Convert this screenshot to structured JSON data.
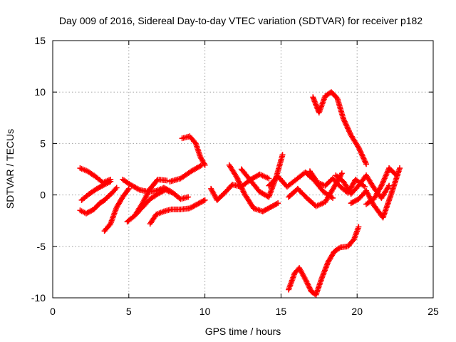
{
  "chart_data": {
    "type": "scatter",
    "title": "Day 009 of 2016, Sidereal Day-to-day VTEC variation (SDTVAR) for receiver p182",
    "xlabel": "GPS time / hours",
    "ylabel": "SDTVAR / TECUs",
    "xlim": [
      0,
      25
    ],
    "ylim": [
      -10,
      15
    ],
    "x_ticks": [
      "0",
      "5",
      "10",
      "15",
      "20",
      "25"
    ],
    "y_ticks": [
      "-10",
      "-5",
      "0",
      "5",
      "10",
      "15"
    ],
    "grid": true,
    "marker": "+",
    "marker_color": "#ff0000",
    "series": [
      {
        "x": [
          1.8,
          2.3,
          2.8,
          3.3,
          3.8
        ],
        "y": [
          2.6,
          2.3,
          1.8,
          1.2,
          1.5
        ]
      },
      {
        "x": [
          1.9,
          2.4,
          2.9,
          3.4,
          3.8
        ],
        "y": [
          -0.5,
          0.1,
          0.6,
          1.0,
          1.3
        ]
      },
      {
        "x": [
          1.8,
          2.2,
          2.7,
          3.1,
          3.4,
          3.9,
          4.2
        ],
        "y": [
          -1.5,
          -1.8,
          -1.4,
          -0.8,
          -0.5,
          0.2,
          0.7
        ]
      },
      {
        "x": [
          3.4,
          3.8,
          4.2,
          4.6,
          5.0
        ],
        "y": [
          -3.5,
          -2.8,
          -1.2,
          -0.2,
          0.6
        ]
      },
      {
        "x": [
          4.6,
          5.1,
          5.7,
          6.3,
          6.8,
          7.3,
          7.8
        ],
        "y": [
          1.5,
          1.0,
          0.5,
          0.3,
          0.4,
          0.7,
          0.3
        ]
      },
      {
        "x": [
          4.9,
          5.4,
          5.9,
          6.4,
          6.9,
          7.4,
          7.9,
          8.4,
          8.9
        ],
        "y": [
          -2.6,
          -2.0,
          -1.2,
          -0.4,
          0.1,
          0.5,
          0.2,
          -0.4,
          -0.2
        ]
      },
      {
        "x": [
          5.4,
          5.9,
          6.4,
          6.9,
          7.5
        ],
        "y": [
          -2.0,
          -0.8,
          0.6,
          1.5,
          1.4
        ]
      },
      {
        "x": [
          6.4,
          6.8,
          7.3,
          7.8,
          8.4,
          9.0,
          9.5,
          10.0
        ],
        "y": [
          -2.8,
          -1.9,
          -1.6,
          -1.4,
          -1.4,
          -1.3,
          -0.9,
          -0.5
        ]
      },
      {
        "x": [
          7.7,
          8.4,
          9.1,
          9.8
        ],
        "y": [
          1.3,
          1.6,
          2.3,
          2.9
        ]
      },
      {
        "x": [
          8.5,
          9.0,
          9.4,
          9.7,
          10.0
        ],
        "y": [
          5.5,
          5.7,
          5.0,
          3.7,
          2.9
        ]
      },
      {
        "x": [
          10.4,
          10.8,
          11.3,
          11.8,
          12.4,
          13.0,
          13.6,
          14.2
        ],
        "y": [
          0.6,
          -0.5,
          0.2,
          1.0,
          0.8,
          1.5,
          2.0,
          1.6
        ]
      },
      {
        "x": [
          11.6,
          12.1,
          12.6,
          13.2,
          13.8,
          14.3,
          14.8
        ],
        "y": [
          2.9,
          1.7,
          0.1,
          -1.3,
          -1.6,
          -1.2,
          -0.8
        ]
      },
      {
        "x": [
          12.4,
          13.0,
          13.6,
          14.2,
          14.7,
          15.1
        ],
        "y": [
          2.5,
          1.4,
          0.3,
          -0.2,
          1.8,
          3.9
        ]
      },
      {
        "x": [
          14.2,
          14.8,
          15.4,
          16.0,
          16.6,
          17.2,
          17.8,
          18.4
        ],
        "y": [
          0.9,
          1.8,
          0.8,
          1.5,
          2.2,
          1.4,
          0.3,
          -0.3
        ]
      },
      {
        "x": [
          15.5,
          16.1,
          16.7,
          17.3,
          17.9,
          18.5,
          19.0
        ],
        "y": [
          -0.2,
          0.6,
          -0.3,
          -1.1,
          -0.7,
          0.8,
          2.1
        ]
      },
      {
        "x": [
          16.9,
          17.4,
          17.9,
          18.4,
          18.9,
          19.4,
          19.9,
          20.5
        ],
        "y": [
          2.3,
          1.2,
          0.9,
          1.6,
          0.8,
          0.2,
          1.5,
          0.8
        ]
      },
      {
        "x": [
          18.6,
          19.1,
          19.6,
          20.1,
          20.6,
          21.1,
          21.6,
          22.1
        ],
        "y": [
          1.9,
          1.3,
          0.1,
          0.9,
          1.9,
          0.7,
          -0.3,
          0.9
        ]
      },
      {
        "x": [
          19.6,
          20.1,
          20.6,
          21.1,
          21.7,
          22.2,
          22.8
        ],
        "y": [
          -0.8,
          -0.4,
          0.4,
          -1.0,
          -2.2,
          -0.1,
          2.6
        ]
      },
      {
        "x": [
          20.6,
          21.1,
          21.6,
          22.1,
          22.6
        ],
        "y": [
          -0.9,
          -0.4,
          0.9,
          2.6,
          1.9
        ]
      },
      {
        "x": [
          17.1,
          17.5,
          17.9,
          18.3,
          18.7,
          19.1,
          19.6,
          20.1,
          20.6
        ],
        "y": [
          9.5,
          8.0,
          9.6,
          10.0,
          9.4,
          7.4,
          5.8,
          4.6,
          3.0
        ]
      },
      {
        "x": [
          15.5,
          15.9,
          16.2,
          16.6,
          17.0,
          17.3,
          17.7,
          18.1,
          18.5,
          18.9,
          19.4,
          19.8,
          20.1
        ],
        "y": [
          -9.2,
          -7.6,
          -7.1,
          -8.2,
          -9.4,
          -9.7,
          -8.0,
          -6.5,
          -5.5,
          -5.1,
          -5.0,
          -4.3,
          -3.1
        ]
      }
    ]
  }
}
